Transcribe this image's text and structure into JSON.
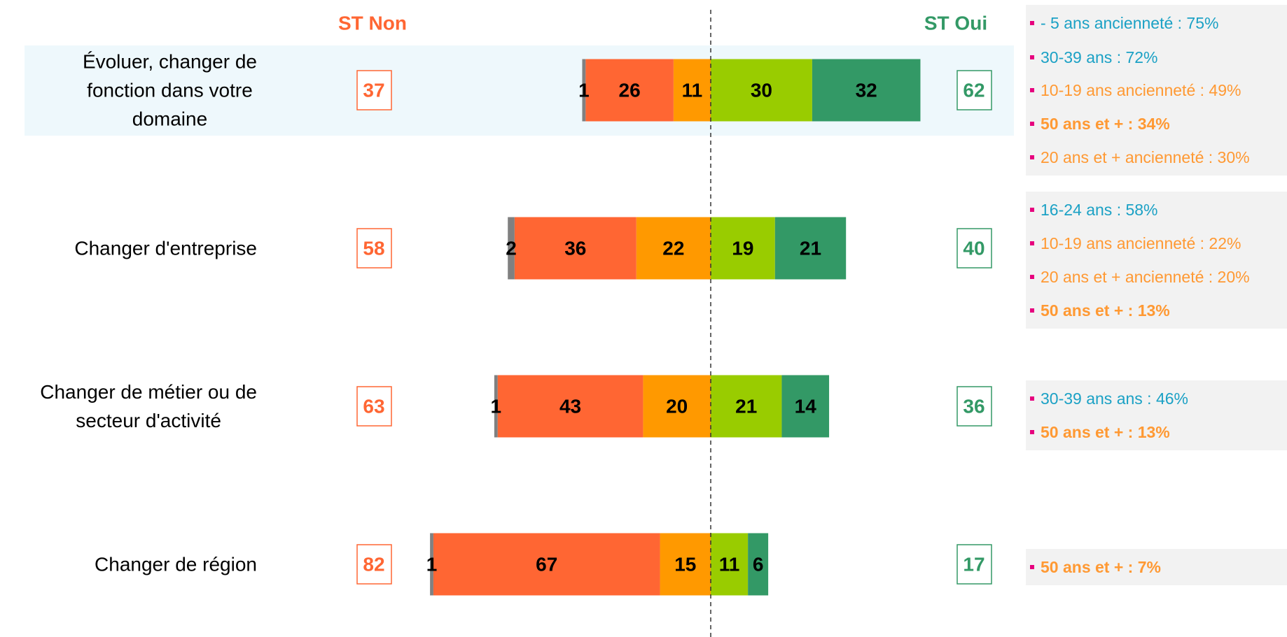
{
  "chart_data": {
    "type": "diverging_bar",
    "left_header": "ST Non",
    "right_header": "ST Oui",
    "left_color": "#ff6633",
    "right_color": "#339966",
    "categories": [
      "Évoluer, changer de\nfonction dans votre\ndomaine",
      "Changer d'entreprise",
      "Changer de métier ou de\nsecteur d'activité",
      "Changer de région"
    ],
    "series": [
      {
        "color": "#808080",
        "side": "left",
        "values": [
          1,
          2,
          1,
          1
        ]
      },
      {
        "color": "#ff6633",
        "side": "left",
        "values": [
          26,
          36,
          43,
          67
        ]
      },
      {
        "color": "#ff9900",
        "side": "left",
        "values": [
          11,
          22,
          20,
          15
        ]
      },
      {
        "color": "#99cc00",
        "side": "right",
        "values": [
          30,
          19,
          21,
          11
        ]
      },
      {
        "color": "#339966",
        "side": "right",
        "values": [
          32,
          21,
          14,
          6
        ]
      }
    ],
    "left_totals": [
      37,
      58,
      63,
      82
    ],
    "right_totals": [
      62,
      40,
      36,
      17
    ],
    "highlight_row": 0
  },
  "notes": [
    [
      {
        "text": "- 5 ans ancienneté : 75%",
        "color": "#1ba1c5",
        "bold": false
      },
      {
        "text": "30-39 ans : 72%",
        "color": "#1ba1c5",
        "bold": false
      },
      {
        "text": "10-19 ans ancienneté : 49%",
        "color": "#ff9933",
        "bold": false
      },
      {
        "text": "50 ans et + : 34%",
        "color": "#ff9933",
        "bold": true
      },
      {
        "text": "20 ans et + ancienneté : 30%",
        "color": "#ff9933",
        "bold": false
      }
    ],
    [
      {
        "text": "16-24 ans : 58%",
        "color": "#1ba1c5",
        "bold": false
      },
      {
        "text": "10-19 ans ancienneté : 22%",
        "color": "#ff9933",
        "bold": false
      },
      {
        "text": "20 ans et + ancienneté : 20%",
        "color": "#ff9933",
        "bold": false
      },
      {
        "text": "50 ans et + : 13%",
        "color": "#ff9933",
        "bold": true
      }
    ],
    [
      {
        "text": "30-39 ans ans : 46%",
        "color": "#1ba1c5",
        "bold": false
      },
      {
        "text": "50 ans et + : 13%",
        "color": "#ff9933",
        "bold": true
      }
    ],
    [
      {
        "text": "50 ans et + : 7%",
        "color": "#ff9933",
        "bold": true
      }
    ]
  ]
}
